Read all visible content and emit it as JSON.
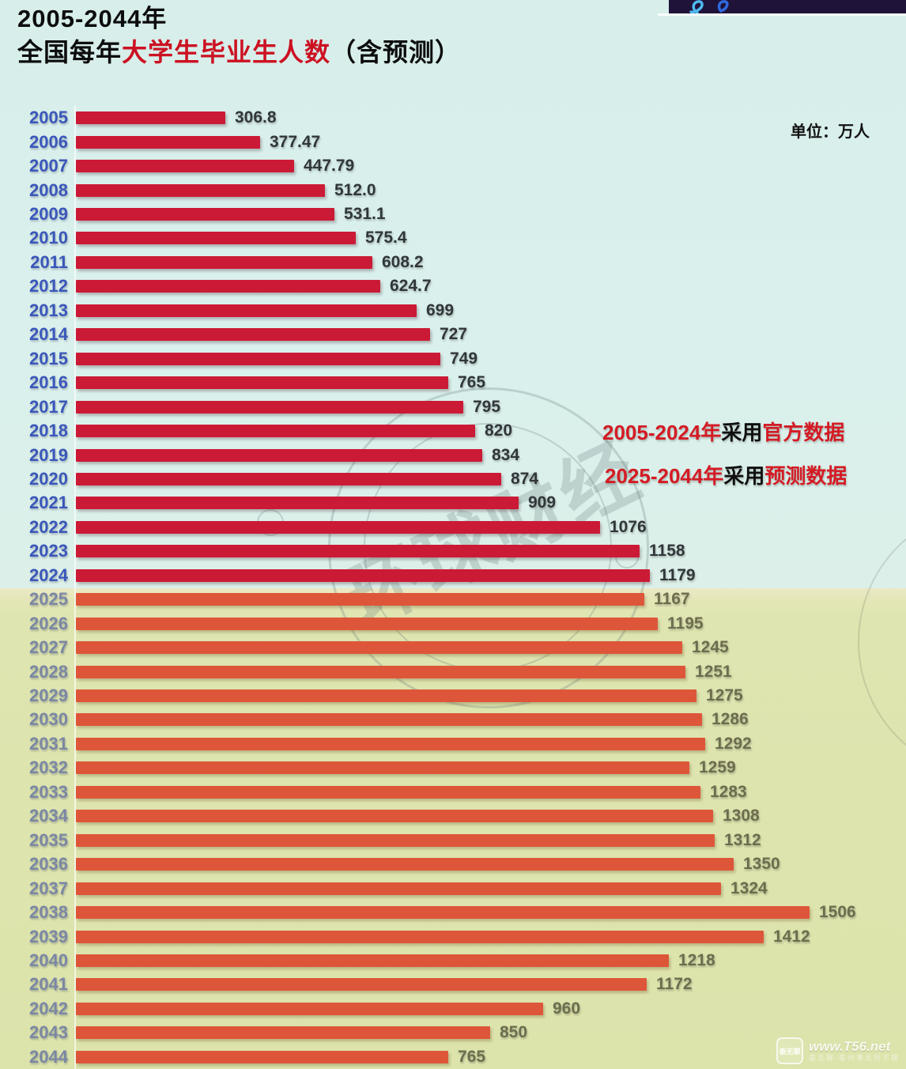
{
  "title": {
    "line1": "2005-2044年",
    "line2_prefix": "全国每年",
    "line2_highlight": "大学生毕业生人数",
    "line2_suffix": "（含预测）"
  },
  "unit_label": "单位：万人",
  "annotations": {
    "line1": {
      "red1": "2005-2024年",
      "black": "采用",
      "red2": "官方数据"
    },
    "line2": {
      "red1": "2025-2044年",
      "black": "采用",
      "red2": "预测数据"
    }
  },
  "watermarks": {
    "stamp_text": "环球财经",
    "corner": {
      "logo_text": "泰无聊",
      "site": "www.T56.net",
      "tagline": "泰无聊·泰州事无所不聊"
    }
  },
  "colors": {
    "official_bar": "#cb1a36",
    "forecast_bar": "#de5639",
    "official_background": "#d9efec",
    "forecast_background": "#dde4ae",
    "official_year_label": "#3a57ba",
    "forecast_year_label": "#7b87a3",
    "official_value_label": "#30363a",
    "forecast_value_label": "#6d6d4e",
    "title_highlight_red": "#cc1122",
    "annotation_red": "#d41b24",
    "banner_navy": "#1f1339"
  },
  "chart_data": {
    "type": "bar",
    "orientation": "horizontal",
    "title": "2005-2044年 全国每年大学生毕业生人数（含预测）",
    "unit": "万人",
    "xlim": [
      0,
      1700
    ],
    "grid": false,
    "legend": "none",
    "sections": [
      {
        "name": "official",
        "label": "2005-2024年采用官方数据",
        "years": "2005-2024"
      },
      {
        "name": "forecast",
        "label": "2025-2044年采用预测数据",
        "years": "2025-2044"
      }
    ],
    "categories": [
      "2005",
      "2006",
      "2007",
      "2008",
      "2009",
      "2010",
      "2011",
      "2012",
      "2013",
      "2014",
      "2015",
      "2016",
      "2017",
      "2018",
      "2019",
      "2020",
      "2021",
      "2022",
      "2023",
      "2024",
      "2025",
      "2026",
      "2027",
      "2028",
      "2029",
      "2030",
      "2031",
      "2032",
      "2033",
      "2034",
      "2035",
      "2036",
      "2037",
      "2038",
      "2039",
      "2040",
      "2041",
      "2042",
      "2043",
      "2044"
    ],
    "values": [
      306.8,
      377.47,
      447.79,
      512.0,
      531.1,
      575.4,
      608.2,
      624.7,
      699,
      727,
      749,
      765,
      795,
      820,
      834,
      874,
      909,
      1076,
      1158,
      1179,
      1167,
      1195,
      1245,
      1251,
      1275,
      1286,
      1292,
      1259,
      1283,
      1308,
      1312,
      1350,
      1324,
      1506,
      1412,
      1218,
      1172,
      960,
      850,
      765
    ],
    "value_labels": [
      "306.8",
      "377.47",
      "447.79",
      "512.0",
      "531.1",
      "575.4",
      "608.2",
      "624.7",
      "699",
      "727",
      "749",
      "765",
      "795",
      "820",
      "834",
      "874",
      "909",
      "1076",
      "1158",
      "1179",
      "1167",
      "1195",
      "1245",
      "1251",
      "1275",
      "1286",
      "1292",
      "1259",
      "1283",
      "1308",
      "1312",
      "1350",
      "1324",
      "1506",
      "1412",
      "1218",
      "1172",
      "960",
      "850",
      "765"
    ]
  }
}
